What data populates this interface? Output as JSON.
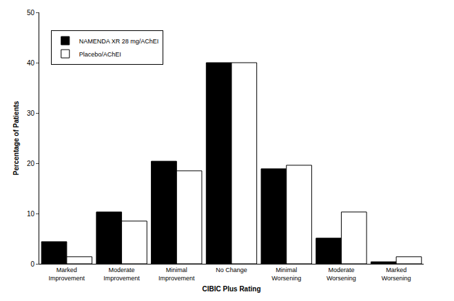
{
  "chart_data": {
    "type": "bar",
    "x_label": "CIBIC Plus Rating",
    "y_label": "Percentage of Patients",
    "categories": [
      "Marked Improvement",
      "Moderate Improvement",
      "Minimal Improvement",
      "No Change",
      "Minimal Worsening",
      "Moderate Worsening",
      "Marked Worsening"
    ],
    "series": [
      {
        "name": "NAMENDA XR 28 mg/AChEI",
        "color": "#000000",
        "values": [
          4.4,
          10.3,
          20.4,
          40,
          18.9,
          5.1,
          0.4
        ]
      },
      {
        "name": "Placebo/AChEI",
        "color": "#ffffff",
        "values": [
          1.4,
          8.5,
          18.5,
          40,
          19.6,
          10.3,
          1.4
        ]
      }
    ],
    "ylim": [
      0,
      50
    ],
    "yticks": [
      0,
      10,
      20,
      30,
      40,
      50
    ],
    "grid": false,
    "legend": "top-left"
  }
}
